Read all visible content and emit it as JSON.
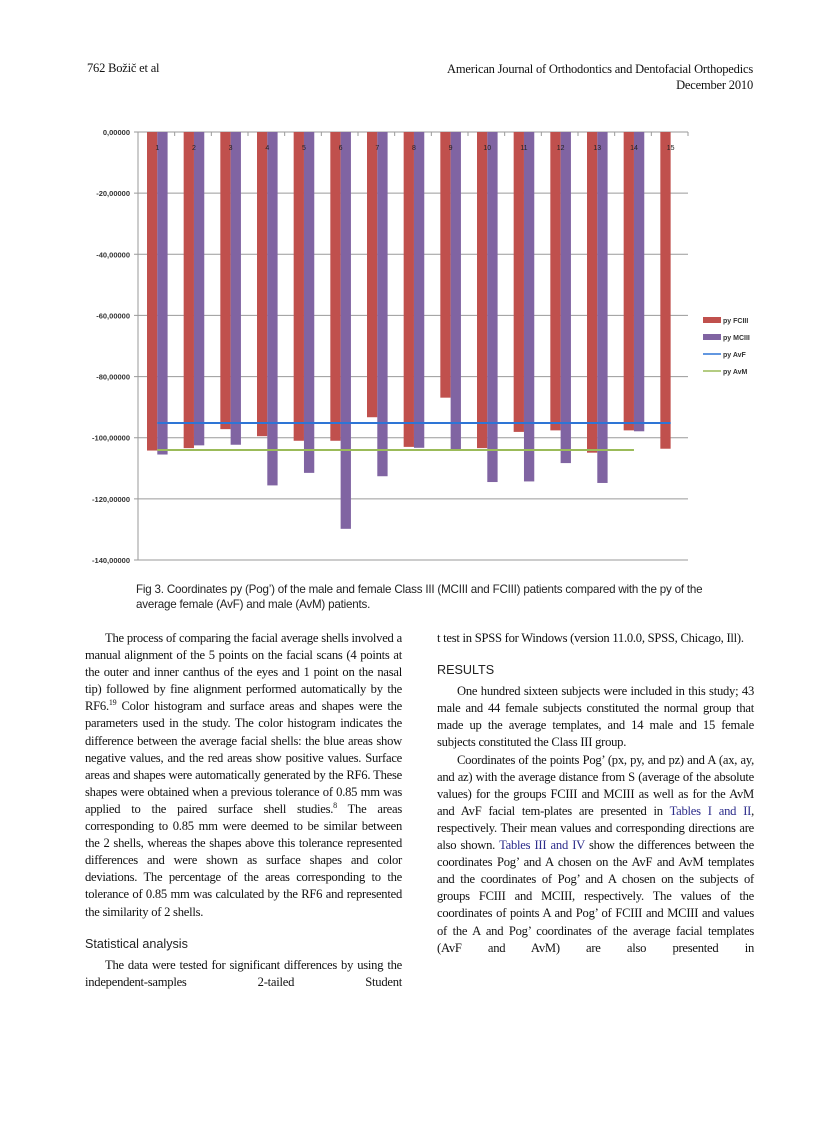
{
  "header": {
    "page_author": "762   Božič et al",
    "journal": "American Journal of Orthodontics and Dentofacial Orthopedics",
    "date": "December 2010"
  },
  "chart_data": {
    "type": "bar",
    "title": "",
    "xlabel": "",
    "ylabel": "",
    "ylim": [
      -140,
      0
    ],
    "yticks": [
      "0,00000",
      "-20,00000",
      "-40,00000",
      "-60,00000",
      "-80,00000",
      "-100,00000",
      "-120,00000",
      "-140,00000"
    ],
    "ytick_values": [
      0,
      -20,
      -40,
      -60,
      -80,
      -100,
      -120,
      -140
    ],
    "categories": [
      "1",
      "2",
      "3",
      "4",
      "5",
      "6",
      "7",
      "8",
      "9",
      "10",
      "11",
      "12",
      "13",
      "14",
      "15"
    ],
    "grid": true,
    "legend_position": "right",
    "series": [
      {
        "name": "py FCIII",
        "kind": "bar",
        "color": "#c0504d",
        "values": [
          -104.2,
          -103.4,
          -97.2,
          -99.5,
          -101.0,
          -101.0,
          -93.3,
          -103.0,
          -86.9,
          -103.4,
          -98.1,
          -97.6,
          -104.9,
          -97.6,
          -103.6
        ]
      },
      {
        "name": "py MCIII",
        "kind": "bar",
        "color": "#8064a2",
        "values": [
          -105.5,
          -102.5,
          -102.3,
          -115.6,
          -111.5,
          -129.8,
          -112.6,
          -103.3,
          -103.8,
          -114.5,
          -114.3,
          -108.3,
          -114.8,
          -97.9,
          null
        ]
      },
      {
        "name": "py AvF",
        "kind": "line",
        "color": "#2e75d6",
        "value": -95.2,
        "span": [
          1,
          15
        ]
      },
      {
        "name": "py AvM",
        "kind": "line",
        "color": "#9bbb59",
        "value": -104.0,
        "span": [
          1,
          14
        ]
      }
    ]
  },
  "caption": "Fig 3.  Coordinates py (Pog’) of the male and female Class III (MCIII and FCIII) patients compared with the py of the average female (AvF) and male (AvM) patients.",
  "left_column": {
    "p1": [
      {
        "t": "The process of comparing the facial average shells involved a manual alignment of the 5 points on the facial scans (4 points at the outer and inner canthus of the eyes and 1 point on the nasal tip) followed by fine alignment performed automatically by the RF6."
      },
      {
        "t": "19",
        "sup": true
      },
      {
        "t": " Color histogram and surface areas and shapes were the parameters used in the study. The color histogram indicates the difference between the average facial shells: the blue areas show negative values, and the red areas show positive values. Surface areas and shapes were automatically generated by the RF6. These shapes were obtained when a previous tolerance of 0.85 mm was applied to the paired surface shell studies."
      },
      {
        "t": "8",
        "sup": true
      },
      {
        "t": " The areas corresponding to 0.85 mm were deemed to be similar between the 2 shells, whereas the shapes above this tolerance represented differences and were shown as surface shapes and color deviations. The percentage of the areas corresponding to the tolerance of 0.85 mm was calculated by the RF6 and represented the similarity of 2 shells."
      }
    ],
    "heading": "Statistical analysis",
    "p2": [
      {
        "t": "The data were tested for significant differences by using the independent-samples 2-tailed Student"
      }
    ]
  },
  "right_column": {
    "p0": [
      {
        "t": "t test in SPSS for Windows (version 11.0.0, SPSS, Chicago, Ill)."
      }
    ],
    "heading": "RESULTS",
    "p1": [
      {
        "t": "One hundred sixteen subjects were included in this study; 43 male and 44 female subjects constituted the normal group that made up the average templates, and 14 male and 15 female subjects constituted the Class III group."
      }
    ],
    "p2": [
      {
        "t": "Coordinates of the points Pog’ (px, py, and pz) and A (ax, ay, and az) with the average distance from S (average of the absolute values) for the groups FCIII and MCIII as well as for the AvM and AvF facial tem-plates are presented in "
      },
      {
        "t": "Tables I and II",
        "link": true
      },
      {
        "t": ", respectively. Their mean values and corresponding directions are also shown. "
      },
      {
        "t": "Tables III and IV",
        "link": true
      },
      {
        "t": " show the differences between the coordinates Pog’ and A chosen on the AvF and AvM templates and the coordinates of Pog’ and A chosen on the subjects of groups FCIII and MCIII, respectively. The values of the coordinates of points A and Pog’ of FCIII and MCIII and values of the A and Pog’ coordinates of the average facial templates (AvF and AvM) are also presented in"
      }
    ]
  }
}
